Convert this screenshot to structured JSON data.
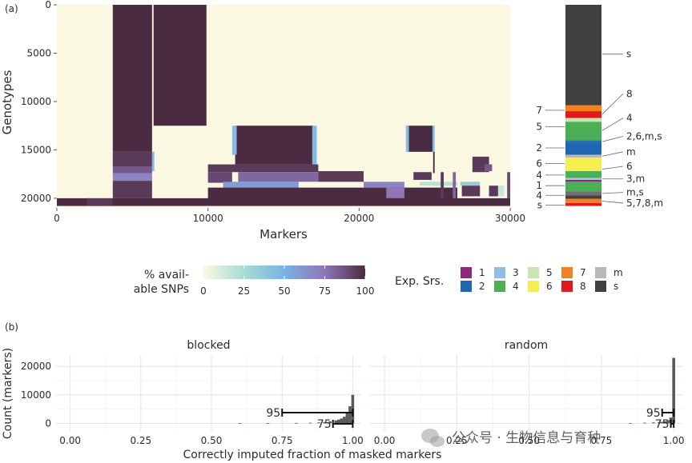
{
  "panel_a_tag": "(a)",
  "panel_b_tag": "(b)",
  "watermark_text": "公众号 · 生物信息与育种",
  "chart_data": [
    {
      "type": "heatmap",
      "title": "",
      "xlabel": "Markers",
      "ylabel": "Genotypes",
      "xlim": [
        0,
        30000
      ],
      "ylim": [
        0,
        21000
      ],
      "x_ticks": [
        0,
        10000,
        20000,
        30000
      ],
      "y_ticks": [
        0,
        5000,
        10000,
        15000,
        20000
      ],
      "background_value": 0,
      "blocks": [
        {
          "x0": 3700,
          "x1": 6300,
          "y0": 0,
          "y1": 15200,
          "v": 100
        },
        {
          "x0": 6400,
          "x1": 9900,
          "y0": 0,
          "y1": 12500,
          "v": 100
        },
        {
          "x0": 3700,
          "x1": 6300,
          "y0": 15200,
          "y1": 16700,
          "v": 95
        },
        {
          "x0": 3700,
          "x1": 6300,
          "y0": 16700,
          "y1": 17400,
          "v": 85
        },
        {
          "x0": 3700,
          "x1": 6300,
          "y0": 17400,
          "y1": 18200,
          "v": 70
        },
        {
          "x0": 3700,
          "x1": 6300,
          "y0": 18200,
          "y1": 20000,
          "v": 95
        },
        {
          "x0": 6300,
          "x1": 6450,
          "y0": 15200,
          "y1": 17200,
          "v": 45
        },
        {
          "x0": 11800,
          "x1": 17000,
          "y0": 12500,
          "y1": 16500,
          "v": 100
        },
        {
          "x0": 11600,
          "x1": 11900,
          "y0": 12500,
          "y1": 15500,
          "v": 45
        },
        {
          "x0": 16900,
          "x1": 17200,
          "y0": 12500,
          "y1": 16500,
          "v": 45
        },
        {
          "x0": 10000,
          "x1": 17300,
          "y0": 16500,
          "y1": 17300,
          "v": 95
        },
        {
          "x0": 10000,
          "x1": 11600,
          "y0": 17300,
          "y1": 18400,
          "v": 90
        },
        {
          "x0": 12000,
          "x1": 17300,
          "y0": 17300,
          "y1": 18300,
          "v": 80
        },
        {
          "x0": 11000,
          "x1": 16000,
          "y0": 18300,
          "y1": 18900,
          "v": 60
        },
        {
          "x0": 10000,
          "x1": 26500,
          "y0": 18900,
          "y1": 20200,
          "v": 100
        },
        {
          "x0": 17300,
          "x1": 20300,
          "y0": 17200,
          "y1": 18300,
          "v": 95
        },
        {
          "x0": 20300,
          "x1": 23000,
          "y0": 18300,
          "y1": 18900,
          "v": 70
        },
        {
          "x0": 21800,
          "x1": 23000,
          "y0": 18900,
          "y1": 20000,
          "v": 75
        },
        {
          "x0": 23200,
          "x1": 24900,
          "y0": 12500,
          "y1": 15200,
          "v": 100
        },
        {
          "x0": 23100,
          "x1": 23300,
          "y0": 12500,
          "y1": 15200,
          "v": 45
        },
        {
          "x0": 24850,
          "x1": 25000,
          "y0": 12500,
          "y1": 15200,
          "v": 45
        },
        {
          "x0": 24900,
          "x1": 25000,
          "y0": 15200,
          "y1": 17400,
          "v": 100
        },
        {
          "x0": 23600,
          "x1": 24800,
          "y0": 17300,
          "y1": 18100,
          "v": 95
        },
        {
          "x0": 24000,
          "x1": 26500,
          "y0": 18300,
          "y1": 18700,
          "v": 20
        },
        {
          "x0": 26700,
          "x1": 28000,
          "y0": 18300,
          "y1": 18700,
          "v": 35
        },
        {
          "x0": 26800,
          "x1": 28000,
          "y0": 18700,
          "y1": 19800,
          "v": 95
        },
        {
          "x0": 27500,
          "x1": 28600,
          "y0": 15700,
          "y1": 17300,
          "v": 95
        },
        {
          "x0": 28300,
          "x1": 28800,
          "y0": 16500,
          "y1": 17200,
          "v": 85
        },
        {
          "x0": 28600,
          "x1": 29200,
          "y0": 18700,
          "y1": 19800,
          "v": 95
        },
        {
          "x0": 29200,
          "x1": 29600,
          "y0": 18700,
          "y1": 19800,
          "v": 15
        },
        {
          "x0": 25400,
          "x1": 25600,
          "y0": 17300,
          "y1": 20000,
          "v": 95
        },
        {
          "x0": 26200,
          "x1": 26400,
          "y0": 17300,
          "y1": 20000,
          "v": 80
        },
        {
          "x0": 29800,
          "x1": 30000,
          "y0": 17300,
          "y1": 20000,
          "v": 90
        },
        {
          "x0": 0,
          "x1": 30000,
          "y0": 20000,
          "y1": 20800,
          "v": 100
        },
        {
          "x0": 2000,
          "x1": 3700,
          "y0": 20000,
          "y1": 20800,
          "v": 95
        }
      ],
      "colorbar": {
        "label_line1": "% avail-",
        "label_line2": "able SNPs",
        "ticks": [
          0,
          25,
          50,
          75,
          100
        ],
        "stops": [
          "#fbf8e2",
          "#a8dcd2",
          "#79b3e2",
          "#8f76b6",
          "#4b2b42"
        ]
      }
    },
    {
      "type": "stacked-bar",
      "orientation": "vertical",
      "ylim": [
        0,
        21000
      ],
      "segments": [
        {
          "name": "s",
          "start": 0,
          "end": 10400,
          "color": "#404040"
        },
        {
          "name": "7",
          "start": 10400,
          "end": 11000,
          "color": "#f38124"
        },
        {
          "name": "8",
          "start": 11000,
          "end": 11700,
          "color": "#e31a1c"
        },
        {
          "name": "5",
          "start": 11700,
          "end": 12100,
          "color": "#c7e4b0"
        },
        {
          "name": "4",
          "start": 12100,
          "end": 14000,
          "color": "#4cae55"
        },
        {
          "name": "2,6,m,s",
          "start": 14000,
          "end": 14300,
          "color": "#2a6fb2"
        },
        {
          "name": "2",
          "start": 14300,
          "end": 15500,
          "color": "#1f66b1"
        },
        {
          "name": "m",
          "start": 15500,
          "end": 15800,
          "color": "#b8b8b8"
        },
        {
          "name": "6",
          "start": 15800,
          "end": 17200,
          "color": "#f4ee50"
        },
        {
          "name": "4",
          "start": 17200,
          "end": 17900,
          "color": "#4cae55"
        },
        {
          "name": "3,m",
          "start": 17900,
          "end": 18100,
          "color": "#a8c9e8"
        },
        {
          "name": "1",
          "start": 18100,
          "end": 18300,
          "color": "#8e2a7c"
        },
        {
          "name": "4",
          "start": 18300,
          "end": 19300,
          "color": "#4cae55"
        },
        {
          "name": "m,s",
          "start": 19300,
          "end": 19700,
          "color": "#707070"
        },
        {
          "name": "s",
          "start": 19700,
          "end": 20050,
          "color": "#404040"
        },
        {
          "name": "5,7,8,m",
          "start": 20050,
          "end": 20500,
          "color": "#f38124"
        },
        {
          "name": "8",
          "start": 20500,
          "end": 20800,
          "color": "#e31a1c"
        }
      ],
      "left_labels": [
        {
          "text": "7",
          "at": 10900
        },
        {
          "text": "5",
          "at": 12600
        },
        {
          "text": "2",
          "at": 14800
        },
        {
          "text": "6",
          "at": 16400
        },
        {
          "text": "4",
          "at": 17600
        },
        {
          "text": "1",
          "at": 18700
        },
        {
          "text": "4",
          "at": 19700
        },
        {
          "text": "s",
          "at": 20700
        }
      ],
      "right_labels": [
        {
          "text": "s",
          "at": 5100,
          "points_to": 5100
        },
        {
          "text": "8",
          "at": 9200,
          "points_to": 11300
        },
        {
          "text": "4",
          "at": 11700,
          "points_to": 13000
        },
        {
          "text": "2,6,m,s",
          "at": 13600,
          "points_to": 14150
        },
        {
          "text": "m",
          "at": 15200,
          "points_to": 15650
        },
        {
          "text": "6",
          "at": 16700,
          "points_to": 17000
        },
        {
          "text": "3,m",
          "at": 18000,
          "points_to": 18000
        },
        {
          "text": "m,s",
          "at": 19400,
          "points_to": 19500
        },
        {
          "text": "5,7,8,m",
          "at": 20500,
          "points_to": 20300
        }
      ],
      "legend": {
        "title": "Exp. Srs.",
        "items": [
          {
            "label": "1",
            "color": "#8e2a7c"
          },
          {
            "label": "2",
            "color": "#1f66b1"
          },
          {
            "label": "3",
            "color": "#8fbde6"
          },
          {
            "label": "4",
            "color": "#4cae55"
          },
          {
            "label": "5",
            "color": "#c9e6b2"
          },
          {
            "label": "6",
            "color": "#f4ee50"
          },
          {
            "label": "7",
            "color": "#f38124"
          },
          {
            "label": "8",
            "color": "#e31a1c"
          },
          {
            "label": "m",
            "color": "#b8b8b8"
          },
          {
            "label": "s",
            "color": "#404040"
          }
        ]
      }
    },
    {
      "type": "histogram",
      "facet": "blocked",
      "xlabel": "Correctly imputed fraction of masked markers",
      "ylabel": "Count (markers)",
      "xlim": [
        -0.05,
        1.03
      ],
      "ylim": [
        -3000,
        24000
      ],
      "x_ticks": [
        0.0,
        0.25,
        0.5,
        0.75,
        1.0
      ],
      "x_tick_labels": [
        "0.00",
        "0.25",
        "0.50",
        "0.75",
        "1.00"
      ],
      "y_ticks": [
        0,
        10000,
        20000
      ],
      "y_tick_labels": [
        "0",
        "10000",
        "20000"
      ],
      "bins": [
        {
          "x": 0.6,
          "count": 60
        },
        {
          "x": 0.7,
          "count": 80
        },
        {
          "x": 0.8,
          "count": 120
        },
        {
          "x": 0.85,
          "count": 200
        },
        {
          "x": 0.88,
          "count": 300
        },
        {
          "x": 0.9,
          "count": 450
        },
        {
          "x": 0.92,
          "count": 700
        },
        {
          "x": 0.94,
          "count": 1000
        },
        {
          "x": 0.95,
          "count": 1300
        },
        {
          "x": 0.96,
          "count": 1700
        },
        {
          "x": 0.97,
          "count": 2300
        },
        {
          "x": 0.98,
          "count": 3500
        },
        {
          "x": 0.99,
          "count": 6000
        },
        {
          "x": 1.0,
          "count": 10000
        }
      ],
      "intervals": [
        {
          "label": "95",
          "from": 0.75,
          "to": 1.0
        },
        {
          "label": "75",
          "from": 0.93,
          "to": 1.0
        }
      ]
    },
    {
      "type": "histogram",
      "facet": "random",
      "xlabel": "Correctly imputed fraction of masked markers",
      "ylabel": "Count (markers)",
      "xlim": [
        -0.05,
        1.03
      ],
      "ylim": [
        -3000,
        24000
      ],
      "x_ticks": [
        0.0,
        0.25,
        0.5,
        0.75,
        1.0
      ],
      "x_tick_labels": [
        "0.00",
        "0.25",
        "0.50",
        "0.75",
        "1.00"
      ],
      "bins": [
        {
          "x": 0.85,
          "count": 100
        },
        {
          "x": 0.9,
          "count": 200
        },
        {
          "x": 0.93,
          "count": 300
        },
        {
          "x": 0.95,
          "count": 400
        },
        {
          "x": 0.96,
          "count": 500
        },
        {
          "x": 0.97,
          "count": 700
        },
        {
          "x": 0.98,
          "count": 1100
        },
        {
          "x": 0.99,
          "count": 2000
        },
        {
          "x": 1.0,
          "count": 23000
        }
      ],
      "intervals": [
        {
          "label": "95",
          "from": 0.96,
          "to": 1.0
        },
        {
          "label": "75",
          "from": 0.99,
          "to": 1.0
        }
      ]
    }
  ]
}
